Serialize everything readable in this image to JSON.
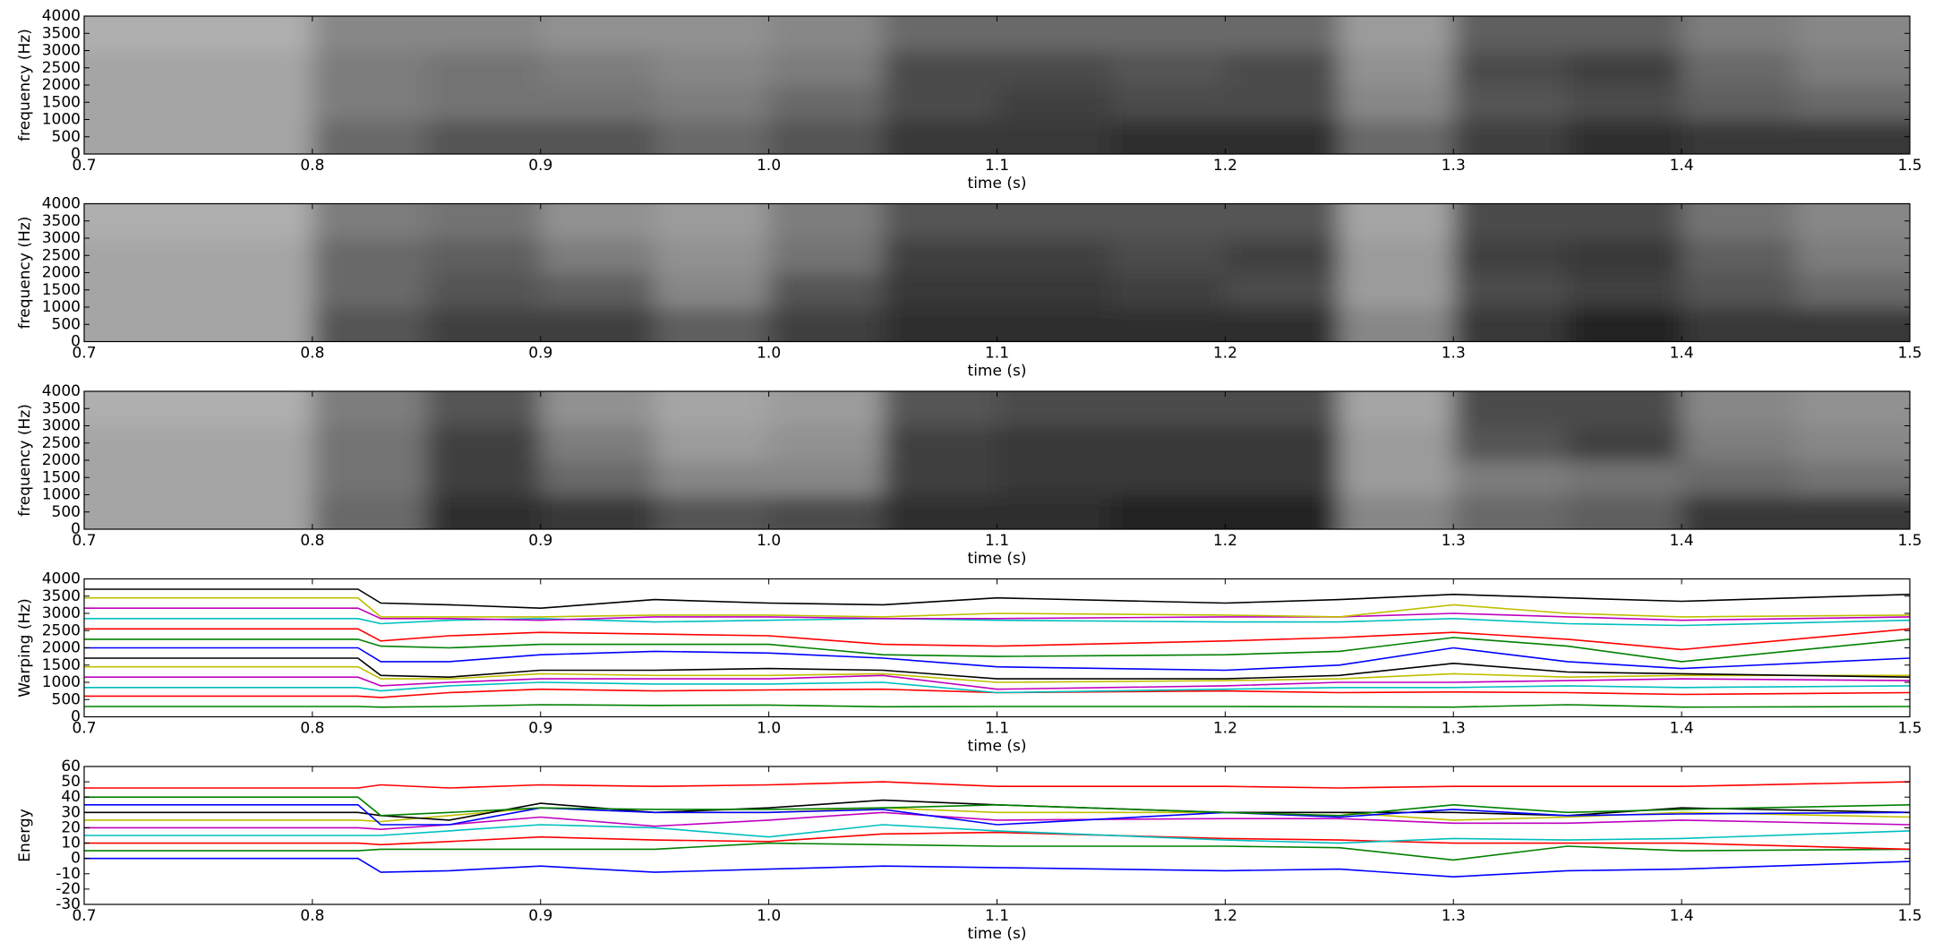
{
  "chart_data": [
    {
      "type": "heatmap",
      "xlabel": "time (s)",
      "ylabel": "frequency (Hz)",
      "colormap": "gray",
      "x": [
        0.725,
        0.775,
        0.825,
        0.875,
        0.925,
        0.975,
        1.025,
        1.075,
        1.125,
        1.175,
        1.225,
        1.275,
        1.325,
        1.375,
        1.425,
        1.475
      ],
      "y": [
        500,
        1500,
        2500,
        3500
      ],
      "z": [
        [
          0.3,
          0.3,
          0.6,
          0.7,
          0.7,
          0.6,
          0.7,
          0.85,
          0.85,
          0.9,
          0.9,
          0.6,
          0.8,
          0.9,
          0.85,
          0.85
        ],
        [
          0.3,
          0.3,
          0.5,
          0.55,
          0.55,
          0.5,
          0.6,
          0.75,
          0.8,
          0.75,
          0.75,
          0.45,
          0.7,
          0.75,
          0.65,
          0.6
        ],
        [
          0.3,
          0.3,
          0.5,
          0.55,
          0.5,
          0.45,
          0.5,
          0.75,
          0.75,
          0.7,
          0.75,
          0.4,
          0.75,
          0.8,
          0.6,
          0.5
        ],
        [
          0.25,
          0.25,
          0.45,
          0.45,
          0.4,
          0.4,
          0.45,
          0.6,
          0.6,
          0.6,
          0.6,
          0.35,
          0.65,
          0.65,
          0.5,
          0.45
        ]
      ],
      "xlim": [
        0.7,
        1.5
      ],
      "ylim": [
        0,
        4000
      ],
      "xticks": [
        0.7,
        0.8,
        0.9,
        {
          "value": 1,
          "label": "1.0"
        },
        1.1,
        1.2,
        1.3,
        1.4,
        1.5
      ],
      "yticks": [
        0,
        500,
        1000,
        1500,
        2000,
        2500,
        3000,
        3500,
        4000
      ]
    },
    {
      "type": "heatmap",
      "xlabel": "time (s)",
      "ylabel": "frequency (Hz)",
      "colormap": "gray",
      "x": [
        0.725,
        0.775,
        0.825,
        0.875,
        0.925,
        0.975,
        1.025,
        1.075,
        1.125,
        1.175,
        1.225,
        1.275,
        1.325,
        1.375,
        1.425,
        1.475
      ],
      "y": [
        500,
        1500,
        2500,
        3500
      ],
      "z": [
        [
          0.3,
          0.3,
          0.7,
          0.8,
          0.8,
          0.65,
          0.8,
          0.9,
          0.9,
          0.9,
          0.9,
          0.45,
          0.85,
          0.95,
          0.85,
          0.85
        ],
        [
          0.3,
          0.3,
          0.6,
          0.7,
          0.65,
          0.45,
          0.7,
          0.85,
          0.85,
          0.8,
          0.75,
          0.35,
          0.75,
          0.8,
          0.7,
          0.6
        ],
        [
          0.3,
          0.3,
          0.6,
          0.65,
          0.5,
          0.4,
          0.55,
          0.8,
          0.8,
          0.75,
          0.8,
          0.35,
          0.8,
          0.85,
          0.65,
          0.5
        ],
        [
          0.25,
          0.25,
          0.5,
          0.55,
          0.4,
          0.35,
          0.5,
          0.7,
          0.7,
          0.7,
          0.7,
          0.3,
          0.75,
          0.75,
          0.55,
          0.45
        ]
      ],
      "xlim": [
        0.7,
        1.5
      ],
      "ylim": [
        0,
        4000
      ],
      "xticks": [
        0.7,
        0.8,
        0.9,
        {
          "value": 1,
          "label": "1.0"
        },
        1.1,
        1.2,
        1.3,
        1.4,
        1.5
      ],
      "yticks": [
        0,
        500,
        1000,
        1500,
        2000,
        2500,
        3000,
        3500,
        4000
      ]
    },
    {
      "type": "heatmap",
      "xlabel": "time (s)",
      "ylabel": "frequency (Hz)",
      "colormap": "gray",
      "x": [
        0.725,
        0.775,
        0.825,
        0.875,
        0.925,
        0.975,
        1.025,
        1.075,
        1.125,
        1.175,
        1.225,
        1.275,
        1.325,
        1.375,
        1.425,
        1.475
      ],
      "y": [
        500,
        1500,
        2500,
        3500
      ],
      "z": [
        [
          0.3,
          0.3,
          0.6,
          0.9,
          0.85,
          0.7,
          0.75,
          0.9,
          0.9,
          0.95,
          0.95,
          0.45,
          0.6,
          0.65,
          0.85,
          0.85
        ],
        [
          0.3,
          0.3,
          0.55,
          0.8,
          0.6,
          0.45,
          0.45,
          0.8,
          0.85,
          0.85,
          0.85,
          0.35,
          0.5,
          0.55,
          0.6,
          0.55
        ],
        [
          0.3,
          0.3,
          0.55,
          0.8,
          0.5,
          0.35,
          0.4,
          0.8,
          0.85,
          0.85,
          0.85,
          0.35,
          0.7,
          0.8,
          0.5,
          0.45
        ],
        [
          0.25,
          0.25,
          0.5,
          0.7,
          0.4,
          0.3,
          0.35,
          0.7,
          0.75,
          0.75,
          0.75,
          0.3,
          0.75,
          0.75,
          0.45,
          0.4
        ]
      ],
      "xlim": [
        0.7,
        1.5
      ],
      "ylim": [
        0,
        4000
      ],
      "xticks": [
        0.7,
        0.8,
        0.9,
        {
          "value": 1,
          "label": "1.0"
        },
        1.1,
        1.2,
        1.3,
        1.4,
        1.5
      ],
      "yticks": [
        0,
        500,
        1000,
        1500,
        2000,
        2500,
        3000,
        3500,
        4000
      ]
    },
    {
      "type": "line",
      "xlabel": "time (s)",
      "ylabel": "Warping (Hz)",
      "x": [
        0.7,
        0.82,
        0.83,
        0.86,
        0.9,
        0.95,
        1.0,
        1.05,
        1.1,
        1.2,
        1.25,
        1.3,
        1.35,
        1.4,
        1.5
      ],
      "series": [
        {
          "color": "#008000",
          "values": [
            300,
            300,
            280,
            300,
            350,
            330,
            340,
            290,
            300,
            300,
            290,
            280,
            350,
            280,
            300
          ]
        },
        {
          "color": "#ff0000",
          "values": [
            600,
            600,
            560,
            700,
            800,
            750,
            780,
            800,
            700,
            750,
            700,
            720,
            700,
            650,
            700
          ]
        },
        {
          "color": "#00bfbf",
          "values": [
            850,
            850,
            750,
            900,
            1000,
            950,
            950,
            1000,
            700,
            800,
            850,
            850,
            900,
            850,
            900
          ]
        },
        {
          "color": "#bf00bf",
          "values": [
            1150,
            1150,
            900,
            1000,
            1100,
            1100,
            1100,
            1200,
            800,
            900,
            1000,
            1000,
            1050,
            1100,
            1050
          ]
        },
        {
          "color": "#bfbf00",
          "values": [
            1450,
            1450,
            1100,
            1100,
            1250,
            1200,
            1200,
            1250,
            1000,
            1050,
            1100,
            1250,
            1150,
            1200,
            1200
          ]
        },
        {
          "color": "#000000",
          "values": [
            1700,
            1700,
            1200,
            1150,
            1350,
            1350,
            1400,
            1350,
            1100,
            1100,
            1200,
            1550,
            1300,
            1250,
            1150
          ]
        },
        {
          "color": "#0000ff",
          "values": [
            2000,
            2000,
            1600,
            1600,
            1800,
            1900,
            1850,
            1700,
            1450,
            1350,
            1500,
            2000,
            1600,
            1400,
            1700
          ]
        },
        {
          "color": "#008000",
          "values": [
            2250,
            2250,
            2050,
            2000,
            2100,
            2100,
            2100,
            1800,
            1750,
            1800,
            1900,
            2300,
            2050,
            1600,
            2250
          ]
        },
        {
          "color": "#ff0000",
          "values": [
            2550,
            2550,
            2200,
            2350,
            2450,
            2400,
            2350,
            2100,
            2050,
            2200,
            2300,
            2450,
            2250,
            1950,
            2550
          ]
        },
        {
          "color": "#00bfbf",
          "values": [
            2850,
            2850,
            2700,
            2800,
            2850,
            2750,
            2800,
            2850,
            2800,
            2750,
            2750,
            2850,
            2700,
            2650,
            2800
          ]
        },
        {
          "color": "#bf00bf",
          "values": [
            3150,
            3150,
            2850,
            2850,
            2800,
            2900,
            2900,
            2850,
            2850,
            2900,
            2900,
            3000,
            2900,
            2800,
            2900
          ]
        },
        {
          "color": "#bfbf00",
          "values": [
            3450,
            3450,
            2900,
            2900,
            2900,
            2950,
            2950,
            2900,
            3000,
            2950,
            2900,
            3250,
            3000,
            2900,
            2950
          ]
        },
        {
          "color": "#000000",
          "values": [
            3700,
            3700,
            3300,
            3250,
            3150,
            3400,
            3300,
            3250,
            3450,
            3300,
            3400,
            3550,
            3450,
            3350,
            3550
          ]
        }
      ],
      "xlim": [
        0.7,
        1.5
      ],
      "ylim": [
        0,
        4000
      ],
      "xticks": [
        0.7,
        0.8,
        0.9,
        {
          "value": 1,
          "label": "1.0"
        },
        1.1,
        1.2,
        1.3,
        1.4,
        1.5
      ],
      "yticks": [
        0,
        500,
        1000,
        1500,
        2000,
        2500,
        3000,
        3500,
        4000
      ]
    },
    {
      "type": "line",
      "xlabel": "time (s)",
      "ylabel": "Energy",
      "x": [
        0.7,
        0.82,
        0.83,
        0.86,
        0.9,
        0.95,
        1.0,
        1.05,
        1.1,
        1.2,
        1.25,
        1.3,
        1.35,
        1.4,
        1.5
      ],
      "series": [
        {
          "color": "#0000ff",
          "values": [
            0,
            0,
            -9,
            -8,
            -5,
            -9,
            -7,
            -5,
            -6,
            -8,
            -7,
            -12,
            -8,
            -7,
            -2
          ]
        },
        {
          "color": "#008000",
          "values": [
            5,
            5,
            6,
            6,
            6,
            6,
            10,
            9,
            8,
            8,
            7,
            -1,
            8,
            5,
            6
          ]
        },
        {
          "color": "#ff0000",
          "values": [
            10,
            10,
            9,
            11,
            14,
            12,
            11,
            16,
            17,
            13,
            12,
            10,
            10,
            10,
            6
          ]
        },
        {
          "color": "#00bfbf",
          "values": [
            15,
            15,
            15,
            18,
            22,
            20,
            14,
            22,
            18,
            12,
            10,
            13,
            12,
            13,
            18
          ]
        },
        {
          "color": "#bf00bf",
          "values": [
            20,
            20,
            19,
            22,
            27,
            21,
            25,
            30,
            25,
            26,
            26,
            23,
            23,
            25,
            22
          ]
        },
        {
          "color": "#bfbf00",
          "values": [
            25,
            25,
            24,
            28,
            33,
            30,
            30,
            33,
            30,
            30,
            30,
            25,
            27,
            30,
            27
          ]
        },
        {
          "color": "#000000",
          "values": [
            30,
            30,
            28,
            25,
            36,
            30,
            33,
            38,
            35,
            30,
            30,
            30,
            28,
            33,
            30
          ]
        },
        {
          "color": "#0000ff",
          "values": [
            35,
            35,
            22,
            22,
            33,
            30,
            30,
            32,
            22,
            30,
            27,
            32,
            28,
            29,
            30
          ]
        },
        {
          "color": "#008000",
          "values": [
            40,
            40,
            28,
            30,
            33,
            32,
            32,
            33,
            35,
            30,
            28,
            35,
            30,
            32,
            35
          ]
        },
        {
          "color": "#ff0000",
          "values": [
            46,
            46,
            48,
            46,
            48,
            47,
            48,
            50,
            47,
            47,
            46,
            47,
            47,
            47,
            50
          ]
        }
      ],
      "xlim": [
        0.7,
        1.5
      ],
      "ylim": [
        -30,
        60
      ],
      "xticks": [
        0.7,
        0.8,
        0.9,
        {
          "value": 1,
          "label": "1.0"
        },
        1.1,
        1.2,
        1.3,
        1.4,
        1.5
      ],
      "yticks": [
        -30,
        -20,
        -10,
        0,
        10,
        20,
        30,
        40,
        50,
        60
      ]
    }
  ]
}
